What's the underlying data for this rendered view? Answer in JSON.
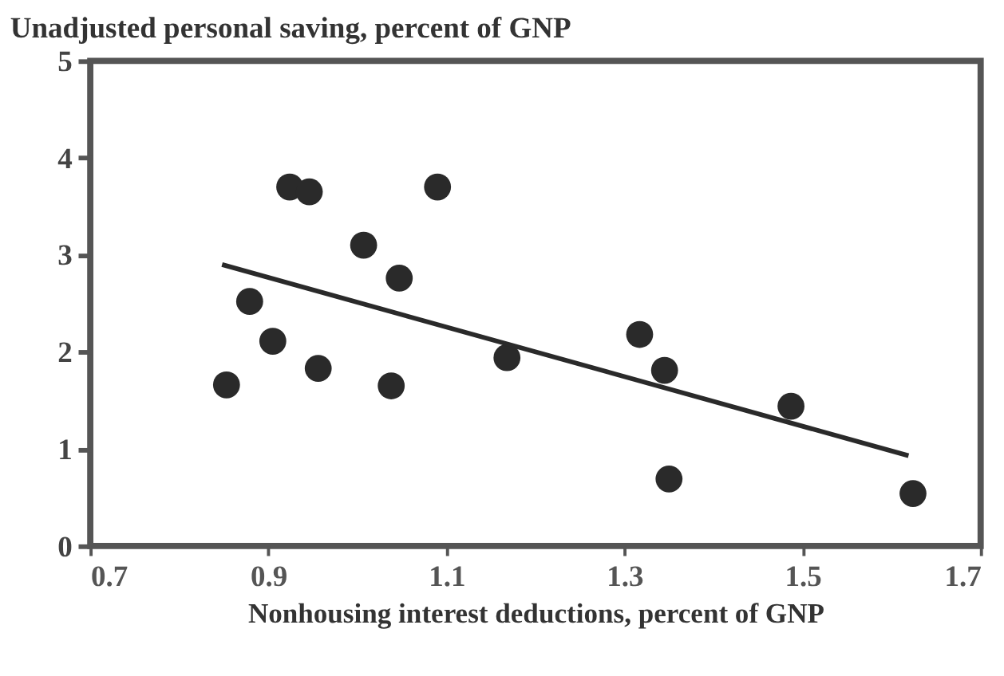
{
  "chart_data": {
    "type": "scatter",
    "title": "Unadjusted personal saving, percent of GNP",
    "xlabel": "Nonhousing interest deductions, percent of GNP",
    "xlim": [
      0.7,
      1.7
    ],
    "xticks": [
      0.7,
      0.9,
      1.1,
      1.3,
      1.5,
      1.7
    ],
    "ylim": [
      0,
      5
    ],
    "yticks": [
      0,
      1,
      2,
      3,
      4,
      5
    ],
    "grid": false,
    "series": [
      {
        "marker": "circle",
        "color": "#2a2a2a",
        "x": [
          0.853,
          0.879,
          0.905,
          0.924,
          0.946,
          0.956,
          1.007,
          1.047,
          1.038,
          1.09,
          1.168,
          1.317,
          1.345,
          1.35,
          1.487,
          1.624
        ],
        "values": [
          1.66,
          2.52,
          2.11,
          3.7,
          3.65,
          1.83,
          3.1,
          2.76,
          1.65,
          3.7,
          1.94,
          2.18,
          1.81,
          0.69,
          1.44,
          0.54
        ]
      },
      {
        "type": "line",
        "color": "#2a2a2a",
        "line_style": "solid",
        "marker": "none",
        "x": [
          0.848,
          1.619
        ],
        "values": [
          2.9,
          0.93
        ]
      }
    ]
  }
}
